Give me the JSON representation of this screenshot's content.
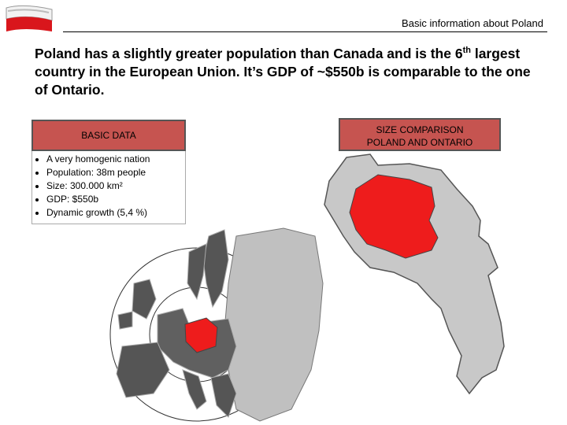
{
  "header": {
    "title": "Basic information about Poland"
  },
  "headline": {
    "before": "Poland has a slightly greater population than Canada and is the 6",
    "superscript": "th",
    "after": " largest country in the European Union. It’s GDP of ~$550b is comparable to the one of Ontario."
  },
  "basic_data": {
    "title": "BASIC DATA",
    "items": [
      "A very homogenic nation",
      "Population: 38m people",
      "Size: 300.000 km²",
      "GDP: $550b",
      "Dynamic growth (5,4 %)"
    ]
  },
  "size_comparison": {
    "title_lines": [
      "SIZE COMPARISON",
      "POLAND AND ONTARIO"
    ]
  }
}
